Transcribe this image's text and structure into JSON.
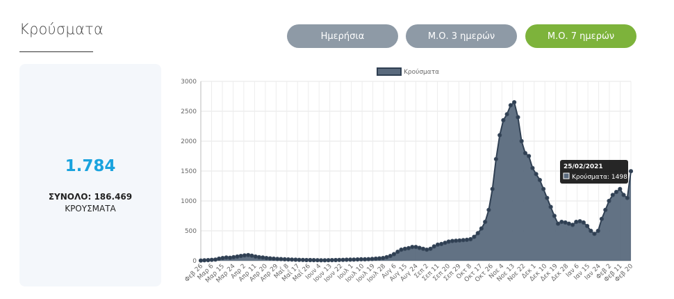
{
  "header": {
    "title": "Κρούσματα"
  },
  "buttons": [
    {
      "label": "Ημερήσια",
      "active": false
    },
    {
      "label": "Μ.Ο. 3 ημερών",
      "active": false
    },
    {
      "label": "Μ.Ο. 7 ημερών",
      "active": true
    }
  ],
  "summary": {
    "today": "1.784",
    "total": "ΣΥΝΟΛΟ: 186.469",
    "label": "ΚΡΟΥΣΜΑΤΑ"
  },
  "colors": {
    "accent": "#7db33b",
    "inactive": "#8e9aa6",
    "highlight": "#1aa3de",
    "series": "#4e5d70"
  },
  "chart_data": {
    "type": "area",
    "legend": "Κρούσματα",
    "ylim": [
      0,
      3000
    ],
    "yticks": [
      0,
      500,
      1000,
      1500,
      2000,
      2500,
      3000
    ],
    "xticks": [
      "Φεβ 26",
      "Μαρ 6",
      "Μαρ 15",
      "Μαρ 24",
      "Απρ 2",
      "Απρ 11",
      "Απρ 20",
      "Απρ 29",
      "Μαΐ 8",
      "Μαΐ 17",
      "Μαΐ 26",
      "Ιουν 4",
      "Ιουν 13",
      "Ιουν 22",
      "Ιουλ 1",
      "Ιουλ 10",
      "Ιουλ 19",
      "Ιουλ 28",
      "Αυγ 6",
      "Αυγ 15",
      "Αυγ 24",
      "Σεπ 2",
      "Σεπ 11",
      "Σεπ 20",
      "Σεπ 29",
      "Οκτ 8",
      "Οκτ 17",
      "Οκτ 26",
      "Νοε 4",
      "Νοε 13",
      "Νοε 22",
      "Δεκ 1",
      "Δεκ 10",
      "Δεκ 19",
      "Δεκ 28",
      "Ιαν 6",
      "Ιαν 15",
      "Ιαν 24",
      "Φεβ 2",
      "Φεβ 11",
      "Φεβ 20"
    ],
    "values": [
      3,
      8,
      10,
      15,
      20,
      35,
      45,
      55,
      50,
      60,
      70,
      80,
      90,
      95,
      85,
      70,
      60,
      55,
      45,
      40,
      35,
      30,
      28,
      25,
      22,
      20,
      18,
      15,
      14,
      12,
      12,
      10,
      9,
      8,
      8,
      9,
      10,
      12,
      14,
      15,
      17,
      19,
      20,
      22,
      24,
      25,
      27,
      30,
      35,
      40,
      45,
      60,
      80,
      110,
      150,
      185,
      200,
      210,
      230,
      230,
      215,
      200,
      185,
      200,
      240,
      270,
      280,
      300,
      320,
      330,
      335,
      340,
      345,
      350,
      360,
      400,
      460,
      540,
      650,
      850,
      1200,
      1700,
      2100,
      2350,
      2450,
      2600,
      2650,
      2400,
      2000,
      1800,
      1750,
      1550,
      1450,
      1350,
      1200,
      1050,
      900,
      750,
      620,
      650,
      640,
      620,
      600,
      650,
      660,
      640,
      580,
      500,
      450,
      500,
      700,
      850,
      1000,
      1100,
      1150,
      1200,
      1100,
      1050,
      1498
    ],
    "tooltip": {
      "date": "25/02/2021",
      "text": "Κρούσματα: 1498",
      "value": 1498
    }
  }
}
